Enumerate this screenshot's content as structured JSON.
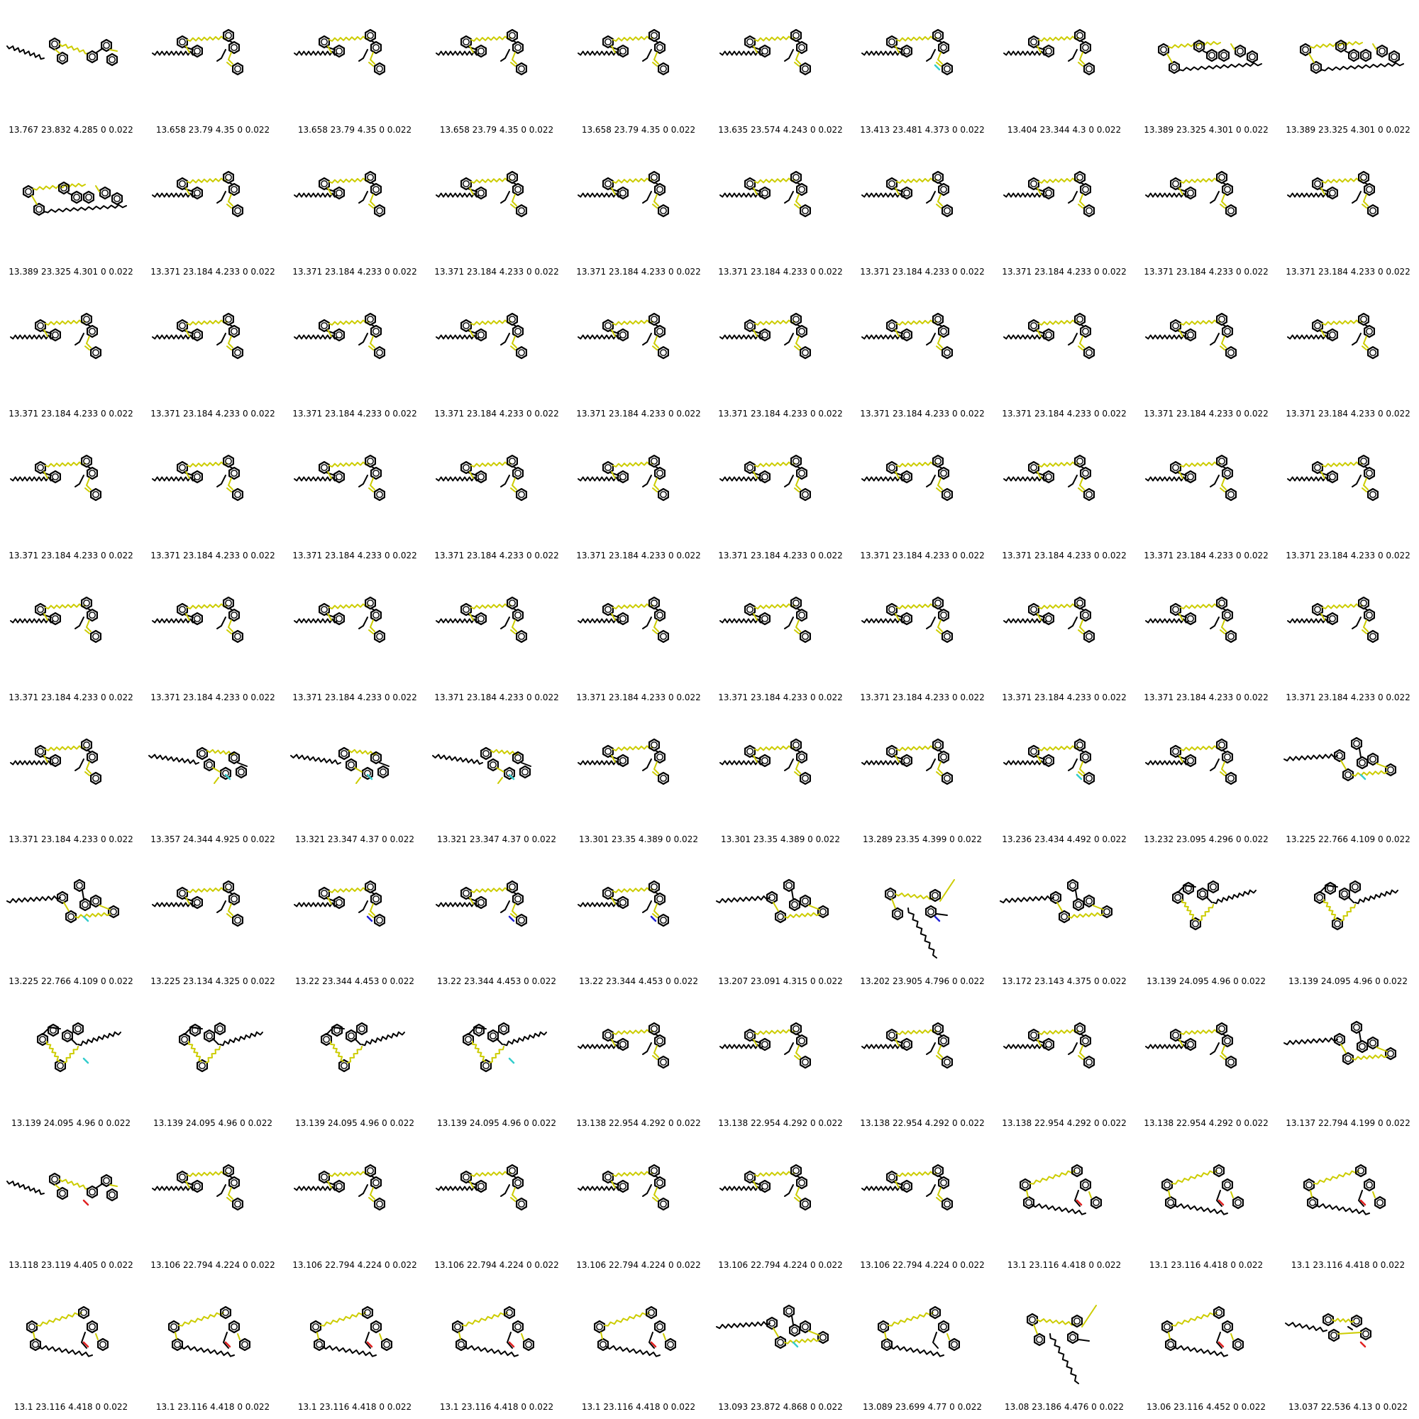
{
  "colors": {
    "carbon": "#000000",
    "sulfur": "#cccc00",
    "nitrogen": "#1f1fd6",
    "oxygen": "#e02020",
    "fluorine": "#33cccc"
  },
  "cells": [
    {
      "caption": "13.767 23.832 4.285 0 0.022",
      "variant": "a",
      "accent": null
    },
    {
      "caption": "13.658 23.79 4.35 0 0.022",
      "variant": "b",
      "accent": null
    },
    {
      "caption": "13.658 23.79 4.35 0 0.022",
      "variant": "b",
      "accent": null
    },
    {
      "caption": "13.658 23.79 4.35 0 0.022",
      "variant": "b",
      "accent": null
    },
    {
      "caption": "13.658 23.79 4.35 0 0.022",
      "variant": "b",
      "accent": null
    },
    {
      "caption": "13.635 23.574 4.243 0 0.022",
      "variant": "b",
      "accent": null
    },
    {
      "caption": "13.413 23.481 4.373 0 0.022",
      "variant": "b",
      "accent": "fluorine"
    },
    {
      "caption": "13.404 23.344 4.3 0 0.022",
      "variant": "b",
      "accent": null
    },
    {
      "caption": "13.389 23.325 4.301 0 0.022",
      "variant": "c",
      "accent": null
    },
    {
      "caption": "13.389 23.325 4.301 0 0.022",
      "variant": "c",
      "accent": null
    },
    {
      "caption": "13.389 23.325 4.301 0 0.022",
      "variant": "c",
      "accent": null
    },
    {
      "caption": "13.371 23.184 4.233 0 0.022",
      "variant": "b",
      "accent": null
    },
    {
      "caption": "13.371 23.184 4.233 0 0.022",
      "variant": "b",
      "accent": null
    },
    {
      "caption": "13.371 23.184 4.233 0 0.022",
      "variant": "b",
      "accent": null
    },
    {
      "caption": "13.371 23.184 4.233 0 0.022",
      "variant": "b",
      "accent": null
    },
    {
      "caption": "13.371 23.184 4.233 0 0.022",
      "variant": "b",
      "accent": null
    },
    {
      "caption": "13.371 23.184 4.233 0 0.022",
      "variant": "b",
      "accent": null
    },
    {
      "caption": "13.371 23.184 4.233 0 0.022",
      "variant": "b",
      "accent": null
    },
    {
      "caption": "13.371 23.184 4.233 0 0.022",
      "variant": "b",
      "accent": null
    },
    {
      "caption": "13.371 23.184 4.233 0 0.022",
      "variant": "b",
      "accent": null
    },
    {
      "caption": "13.371 23.184 4.233 0 0.022",
      "variant": "b",
      "accent": null
    },
    {
      "caption": "13.371 23.184 4.233 0 0.022",
      "variant": "b",
      "accent": null
    },
    {
      "caption": "13.371 23.184 4.233 0 0.022",
      "variant": "b",
      "accent": null
    },
    {
      "caption": "13.371 23.184 4.233 0 0.022",
      "variant": "b",
      "accent": null
    },
    {
      "caption": "13.371 23.184 4.233 0 0.022",
      "variant": "b",
      "accent": null
    },
    {
      "caption": "13.371 23.184 4.233 0 0.022",
      "variant": "b",
      "accent": null
    },
    {
      "caption": "13.371 23.184 4.233 0 0.022",
      "variant": "b",
      "accent": null
    },
    {
      "caption": "13.371 23.184 4.233 0 0.022",
      "variant": "b",
      "accent": null
    },
    {
      "caption": "13.371 23.184 4.233 0 0.022",
      "variant": "b",
      "accent": null
    },
    {
      "caption": "13.371 23.184 4.233 0 0.022",
      "variant": "b",
      "accent": null
    },
    {
      "caption": "13.371 23.184 4.233 0 0.022",
      "variant": "b",
      "accent": null
    },
    {
      "caption": "13.371 23.184 4.233 0 0.022",
      "variant": "b",
      "accent": null
    },
    {
      "caption": "13.371 23.184 4.233 0 0.022",
      "variant": "b",
      "accent": null
    },
    {
      "caption": "13.371 23.184 4.233 0 0.022",
      "variant": "b",
      "accent": null
    },
    {
      "caption": "13.371 23.184 4.233 0 0.022",
      "variant": "b",
      "accent": null
    },
    {
      "caption": "13.371 23.184 4.233 0 0.022",
      "variant": "b",
      "accent": null
    },
    {
      "caption": "13.371 23.184 4.233 0 0.022",
      "variant": "b",
      "accent": null
    },
    {
      "caption": "13.371 23.184 4.233 0 0.022",
      "variant": "b",
      "accent": null
    },
    {
      "caption": "13.371 23.184 4.233 0 0.022",
      "variant": "b",
      "accent": null
    },
    {
      "caption": "13.371 23.184 4.233 0 0.022",
      "variant": "b",
      "accent": null
    },
    {
      "caption": "13.371 23.184 4.233 0 0.022",
      "variant": "b",
      "accent": null
    },
    {
      "caption": "13.371 23.184 4.233 0 0.022",
      "variant": "b",
      "accent": null
    },
    {
      "caption": "13.371 23.184 4.233 0 0.022",
      "variant": "b",
      "accent": null
    },
    {
      "caption": "13.371 23.184 4.233 0 0.022",
      "variant": "b",
      "accent": null
    },
    {
      "caption": "13.371 23.184 4.233 0 0.022",
      "variant": "b",
      "accent": null
    },
    {
      "caption": "13.371 23.184 4.233 0 0.022",
      "variant": "b",
      "accent": null
    },
    {
      "caption": "13.371 23.184 4.233 0 0.022",
      "variant": "b",
      "accent": null
    },
    {
      "caption": "13.371 23.184 4.233 0 0.022",
      "variant": "b",
      "accent": null
    },
    {
      "caption": "13.371 23.184 4.233 0 0.022",
      "variant": "b",
      "accent": null
    },
    {
      "caption": "13.371 23.184 4.233 0 0.022",
      "variant": "b",
      "accent": null
    },
    {
      "caption": "13.371 23.184 4.233 0 0.022",
      "variant": "b",
      "accent": null
    },
    {
      "caption": "13.357 24.344 4.925 0 0.022",
      "variant": "d",
      "accent": "fluorine"
    },
    {
      "caption": "13.321 23.347 4.37 0 0.022",
      "variant": "d",
      "accent": "fluorine"
    },
    {
      "caption": "13.321 23.347 4.37 0 0.022",
      "variant": "d",
      "accent": "fluorine"
    },
    {
      "caption": "13.301 23.35 4.389 0 0.022",
      "variant": "b",
      "accent": null
    },
    {
      "caption": "13.301 23.35 4.389 0 0.022",
      "variant": "b",
      "accent": null
    },
    {
      "caption": "13.289 23.35 4.399 0 0.022",
      "variant": "b",
      "accent": null
    },
    {
      "caption": "13.236 23.434 4.492 0 0.022",
      "variant": "b",
      "accent": "fluorine"
    },
    {
      "caption": "13.232 23.095 4.296 0 0.022",
      "variant": "b",
      "accent": null
    },
    {
      "caption": "13.225 22.766 4.109 0 0.022",
      "variant": "e",
      "accent": "fluorine"
    },
    {
      "caption": "13.225 22.766 4.109 0 0.022",
      "variant": "e",
      "accent": "fluorine"
    },
    {
      "caption": "13.225 23.134 4.325 0 0.022",
      "variant": "b",
      "accent": null
    },
    {
      "caption": "13.22 23.344 4.453 0 0.022",
      "variant": "b",
      "accent": "nitrogen"
    },
    {
      "caption": "13.22 23.344 4.453 0 0.022",
      "variant": "b",
      "accent": "nitrogen"
    },
    {
      "caption": "13.22 23.344 4.453 0 0.022",
      "variant": "b",
      "accent": "nitrogen"
    },
    {
      "caption": "13.207 23.091 4.315 0 0.022",
      "variant": "e",
      "accent": null
    },
    {
      "caption": "13.202 23.905 4.796 0 0.022",
      "variant": "f",
      "accent": "nitrogen"
    },
    {
      "caption": "13.172 23.143 4.375 0 0.022",
      "variant": "e",
      "accent": null
    },
    {
      "caption": "13.139 24.095 4.96 0 0.022",
      "variant": "g",
      "accent": null
    },
    {
      "caption": "13.139 24.095 4.96 0 0.022",
      "variant": "g",
      "accent": null
    },
    {
      "caption": "13.139 24.095 4.96 0 0.022",
      "variant": "g",
      "accent": "fluorine"
    },
    {
      "caption": "13.139 24.095 4.96 0 0.022",
      "variant": "g",
      "accent": null
    },
    {
      "caption": "13.139 24.095 4.96 0 0.022",
      "variant": "g",
      "accent": null
    },
    {
      "caption": "13.139 24.095 4.96 0 0.022",
      "variant": "g",
      "accent": "fluorine"
    },
    {
      "caption": "13.138 22.954 4.292 0 0.022",
      "variant": "b",
      "accent": null
    },
    {
      "caption": "13.138 22.954 4.292 0 0.022",
      "variant": "b",
      "accent": null
    },
    {
      "caption": "13.138 22.954 4.292 0 0.022",
      "variant": "b",
      "accent": null
    },
    {
      "caption": "13.138 22.954 4.292 0 0.022",
      "variant": "b",
      "accent": null
    },
    {
      "caption": "13.138 22.954 4.292 0 0.022",
      "variant": "b",
      "accent": null
    },
    {
      "caption": "13.137 22.794 4.199 0 0.022",
      "variant": "e",
      "accent": null
    },
    {
      "caption": "13.118 23.119 4.405 0 0.022",
      "variant": "a",
      "accent": "oxygen"
    },
    {
      "caption": "13.106 22.794 4.224 0 0.022",
      "variant": "b",
      "accent": null
    },
    {
      "caption": "13.106 22.794 4.224 0 0.022",
      "variant": "b",
      "accent": null
    },
    {
      "caption": "13.106 22.794 4.224 0 0.022",
      "variant": "b",
      "accent": null
    },
    {
      "caption": "13.106 22.794 4.224 0 0.022",
      "variant": "b",
      "accent": null
    },
    {
      "caption": "13.106 22.794 4.224 0 0.022",
      "variant": "b",
      "accent": null
    },
    {
      "caption": "13.106 22.794 4.224 0 0.022",
      "variant": "b",
      "accent": null
    },
    {
      "caption": "13.1 23.116 4.418 0 0.022",
      "variant": "h",
      "accent": "oxygen"
    },
    {
      "caption": "13.1 23.116 4.418 0 0.022",
      "variant": "h",
      "accent": "oxygen"
    },
    {
      "caption": "13.1 23.116 4.418 0 0.022",
      "variant": "h",
      "accent": "oxygen"
    },
    {
      "caption": "13.1 23.116 4.418 0 0.022",
      "variant": "h",
      "accent": "oxygen"
    },
    {
      "caption": "13.1 23.116 4.418 0 0.022",
      "variant": "h",
      "accent": "oxygen"
    },
    {
      "caption": "13.1 23.116 4.418 0 0.022",
      "variant": "h",
      "accent": "oxygen"
    },
    {
      "caption": "13.1 23.116 4.418 0 0.022",
      "variant": "h",
      "accent": "oxygen"
    },
    {
      "caption": "13.1 23.116 4.418 0 0.022",
      "variant": "h",
      "accent": "oxygen"
    },
    {
      "caption": "13.093 23.872 4.868 0 0.022",
      "variant": "e",
      "accent": "fluorine"
    },
    {
      "caption": "13.089 23.699 4.77 0 0.022",
      "variant": "h",
      "accent": null
    },
    {
      "caption": "13.08 23.186 4.476 0 0.022",
      "variant": "f",
      "accent": null
    },
    {
      "caption": "13.06 23.116 4.452 0 0.022",
      "variant": "h",
      "accent": "oxygen"
    },
    {
      "caption": "13.037 22.536 4.13 0 0.022",
      "variant": "i",
      "accent": "oxygen"
    }
  ]
}
